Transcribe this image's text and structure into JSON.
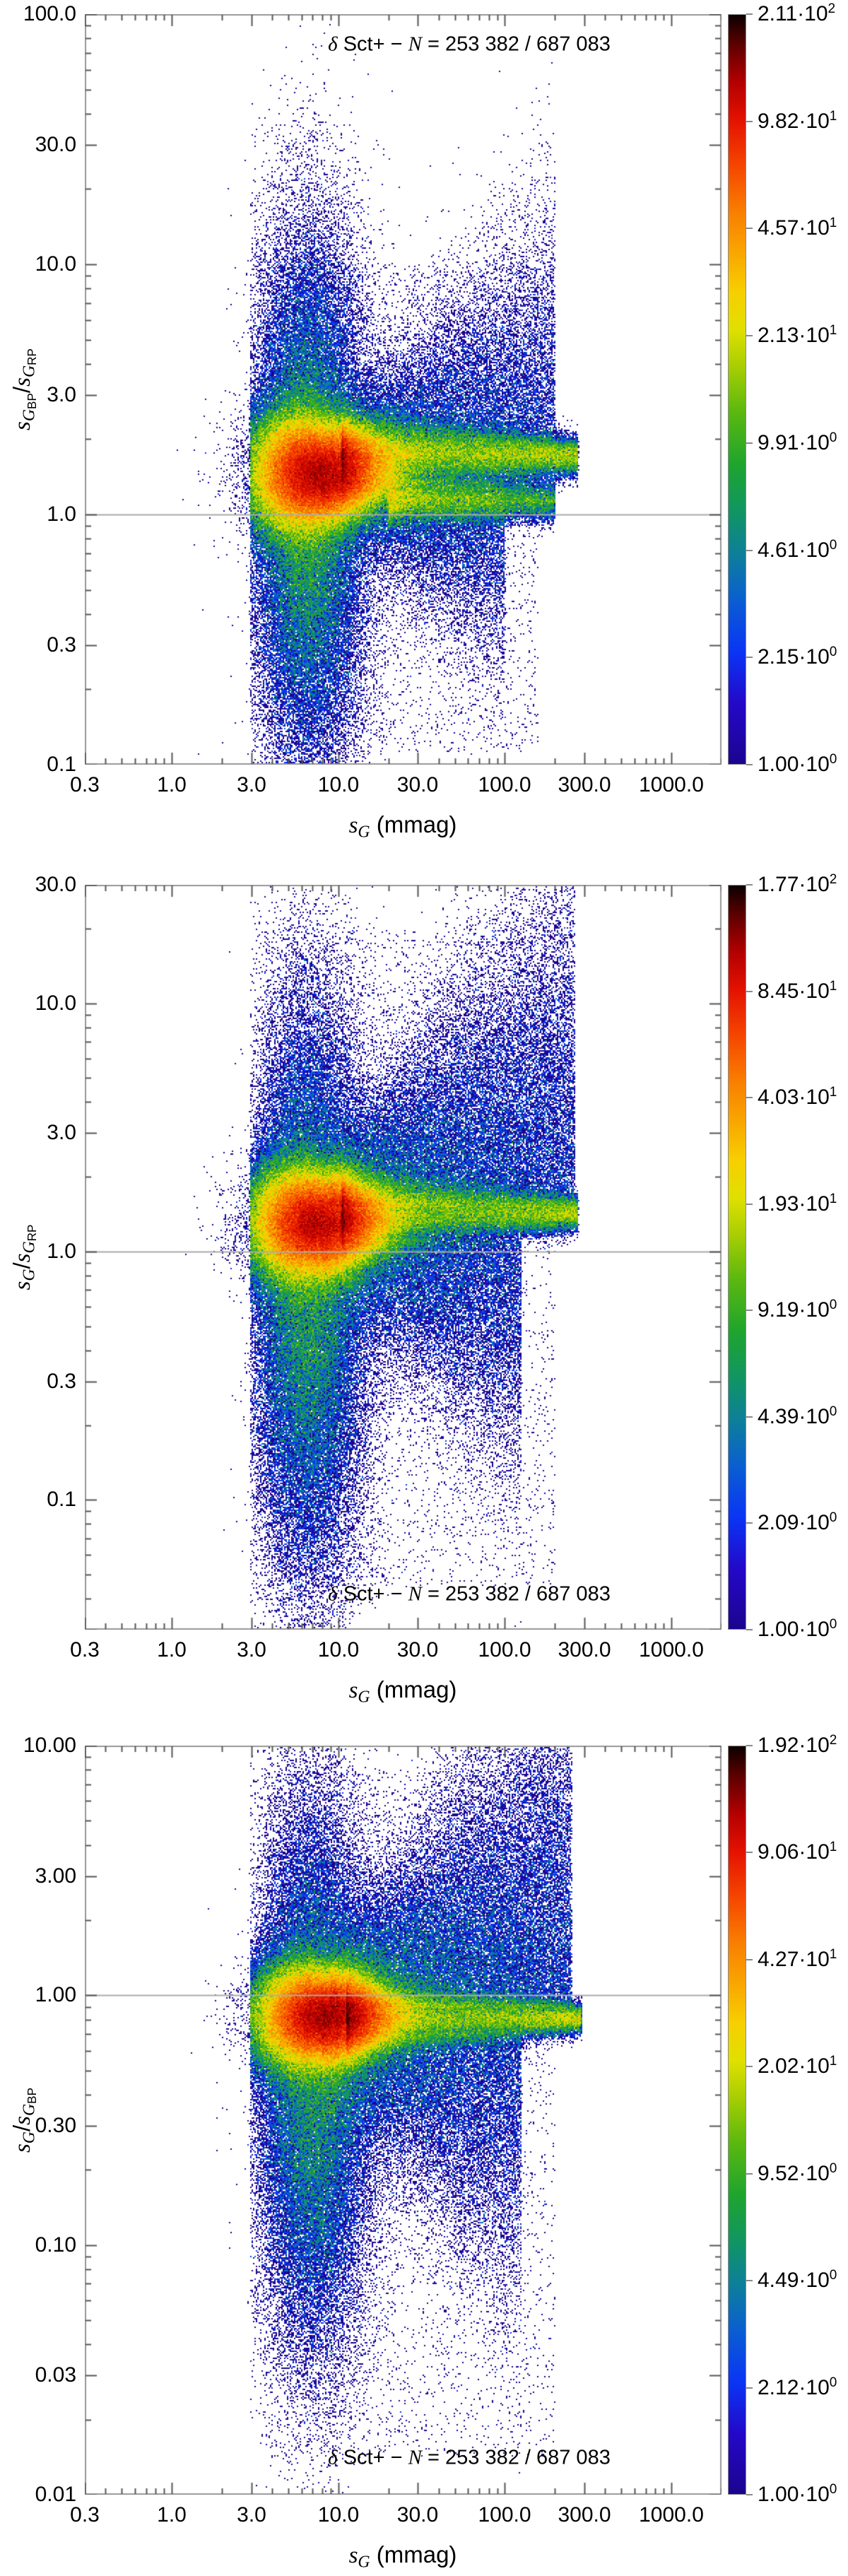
{
  "annotation": {
    "delta": "δ",
    "pre": " Sct+ − ",
    "nvar": "N",
    "post": " = 253 382 / 687 083"
  },
  "x_axis": {
    "title": {
      "s": "s",
      "sub": "G",
      "unit": " (mmag)"
    },
    "scale": "log",
    "range": [
      0.3,
      2000
    ],
    "ticks": [
      {
        "label": "0.3",
        "v": 0.3
      },
      {
        "label": "1.0",
        "v": 1
      },
      {
        "label": "3.0",
        "v": 3
      },
      {
        "label": "10.0",
        "v": 10
      },
      {
        "label": "30.0",
        "v": 30
      },
      {
        "label": "100.0",
        "v": 100
      },
      {
        "label": "300.0",
        "v": 300
      },
      {
        "label": "1000.0",
        "v": 1000
      }
    ]
  },
  "colormap": [
    [
      0.0,
      "#1c048f"
    ],
    [
      0.08,
      "#2408c8"
    ],
    [
      0.15,
      "#0a35f5"
    ],
    [
      0.22,
      "#0b5fd0"
    ],
    [
      0.28,
      "#0d7f9a"
    ],
    [
      0.34,
      "#119660"
    ],
    [
      0.4,
      "#1fa42e"
    ],
    [
      0.47,
      "#5bb80f"
    ],
    [
      0.53,
      "#a7ce03"
    ],
    [
      0.58,
      "#e0e000"
    ],
    [
      0.63,
      "#f7cf00"
    ],
    [
      0.68,
      "#f9a800"
    ],
    [
      0.74,
      "#f97c00"
    ],
    [
      0.8,
      "#f54400"
    ],
    [
      0.86,
      "#e31200"
    ],
    [
      0.91,
      "#b30000"
    ],
    [
      0.96,
      "#5e0000"
    ],
    [
      1.0,
      "#0c0000"
    ]
  ],
  "ref_line_color": "#ababab",
  "chart_data": {
    "type": "heatmap",
    "subtype": "log-density-scatter",
    "x_scale": "log",
    "x_range": [
      0.3,
      2000
    ],
    "x_tick_values": [
      0.3,
      1,
      3,
      10,
      30,
      100,
      300,
      1000
    ],
    "panels": [
      {
        "id": "sGBP-over-sGRP-vs-sG",
        "y_label": {
          "num_s": "s",
          "num_sub": "G",
          "num_subsub": "BP",
          "slash": "/",
          "den_s": "s",
          "den_sub": "G",
          "den_subsub": "RP"
        },
        "y_scale": "log",
        "y_range": [
          0.1,
          100
        ],
        "ref_line_y": 1.0,
        "annotation_pos": "top",
        "y_ticks": [
          {
            "label": "100.0",
            "v": 100
          },
          {
            "label": "30.0",
            "v": 30
          },
          {
            "label": "10.0",
            "v": 10
          },
          {
            "label": "3.0",
            "v": 3
          },
          {
            "label": "1.0",
            "v": 1
          },
          {
            "label": "0.3",
            "v": 0.3
          },
          {
            "label": "0.1",
            "v": 0.1
          }
        ],
        "colorbar": {
          "max": 211,
          "min": 1,
          "ticks": [
            {
              "base": "2.11·10",
              "exp": "2",
              "v": 211
            },
            {
              "base": "9.82·10",
              "exp": "1",
              "v": 98.2
            },
            {
              "base": "4.57·10",
              "exp": "1",
              "v": 45.7
            },
            {
              "base": "2.13·10",
              "exp": "1",
              "v": 21.3
            },
            {
              "base": "9.91·10",
              "exp": "0",
              "v": 9.91
            },
            {
              "base": "4.61·10",
              "exp": "0",
              "v": 4.61
            },
            {
              "base": "2.15·10",
              "exp": "0",
              "v": 2.15
            },
            {
              "base": "1.00·10",
              "exp": "0",
              "v": 1.0
            }
          ]
        },
        "density_components": [
          {
            "kind": "blob",
            "w": 0.46,
            "mx": 0.86,
            "sx": 0.21,
            "my": 0.165,
            "sy": 0.13,
            "taper": 0.55
          },
          {
            "kind": "blob",
            "w": 0.17,
            "mx": 0.82,
            "sx": 0.17,
            "my": 0.05,
            "sy": 0.5,
            "taper": 0
          },
          {
            "kind": "tail",
            "w": 0.13,
            "x0": 1.02,
            "x1": 2.44,
            "pow": 1.5,
            "my": 0.235,
            "sy0": 0.085,
            "sy1": 0.038
          },
          {
            "kind": "tail",
            "w": 0.045,
            "x0": 1.3,
            "x1": 2.3,
            "pow": 1.2,
            "my": 0.055,
            "sy0": 0.05,
            "sy1": 0.04
          },
          {
            "kind": "fan",
            "w": 0.05,
            "x0": 0.95,
            "x1": 2.3,
            "my": 0.22,
            "spread": 0.3,
            "grow": 1.3,
            "dir": 1
          },
          {
            "kind": "fan",
            "w": 0.04,
            "x0": 0.9,
            "x1": 2.0,
            "my": 0.14,
            "spread": 0.3,
            "grow": 0.9,
            "dir": -1
          },
          {
            "kind": "uniform",
            "w": 0.008,
            "x0": 0.55,
            "x1": 2.2,
            "y0": -0.95,
            "y1": 1.0
          }
        ]
      },
      {
        "id": "sG-over-sGRP-vs-sG",
        "y_label": {
          "num_s": "s",
          "num_sub": "G",
          "num_subsub": "",
          "slash": "/",
          "den_s": "s",
          "den_sub": "G",
          "den_subsub": "RP"
        },
        "y_scale": "log",
        "y_range": [
          0.03,
          30
        ],
        "ref_line_y": 1.0,
        "annotation_pos": "bottom",
        "y_ticks": [
          {
            "label": "30.0",
            "v": 30
          },
          {
            "label": "10.0",
            "v": 10
          },
          {
            "label": "3.0",
            "v": 3
          },
          {
            "label": "1.0",
            "v": 1
          },
          {
            "label": "0.3",
            "v": 0.3
          },
          {
            "label": "0.1",
            "v": 0.1
          }
        ],
        "colorbar": {
          "max": 177,
          "min": 1,
          "ticks": [
            {
              "base": "1.77·10",
              "exp": "2",
              "v": 177
            },
            {
              "base": "8.45·10",
              "exp": "1",
              "v": 84.5
            },
            {
              "base": "4.03·10",
              "exp": "1",
              "v": 40.3
            },
            {
              "base": "1.93·10",
              "exp": "1",
              "v": 19.3
            },
            {
              "base": "9.19·10",
              "exp": "0",
              "v": 9.19
            },
            {
              "base": "4.39·10",
              "exp": "0",
              "v": 4.39
            },
            {
              "base": "2.09·10",
              "exp": "0",
              "v": 2.09
            },
            {
              "base": "1.00·10",
              "exp": "0",
              "v": 1.0
            }
          ]
        },
        "density_components": [
          {
            "kind": "blob",
            "w": 0.46,
            "mx": 0.86,
            "sx": 0.21,
            "my": 0.115,
            "sy": 0.125,
            "taper": 0.5
          },
          {
            "kind": "blob",
            "w": 0.17,
            "mx": 0.82,
            "sx": 0.17,
            "my": -0.15,
            "sy": 0.55,
            "taper": 0
          },
          {
            "kind": "tail",
            "w": 0.12,
            "x0": 1.02,
            "x1": 2.44,
            "pow": 1.5,
            "my": 0.155,
            "sy0": 0.08,
            "sy1": 0.035
          },
          {
            "kind": "fan",
            "w": 0.085,
            "x0": 0.95,
            "x1": 2.42,
            "my": 0.18,
            "spread": 0.38,
            "grow": 1.5,
            "dir": 1
          },
          {
            "kind": "fan",
            "w": 0.05,
            "x0": 0.9,
            "x1": 2.1,
            "my": 0.05,
            "spread": 0.36,
            "grow": 1.0,
            "dir": -1
          },
          {
            "kind": "uniform",
            "w": 0.01,
            "x0": 0.55,
            "x1": 2.3,
            "y0": -1.35,
            "y1": 1.3
          }
        ]
      },
      {
        "id": "sG-over-sGBP-vs-sG",
        "y_label": {
          "num_s": "s",
          "num_sub": "G",
          "num_subsub": "",
          "slash": "/",
          "den_s": "s",
          "den_sub": "G",
          "den_subsub": "BP"
        },
        "y_scale": "log",
        "y_range": [
          0.01,
          10
        ],
        "ref_line_y": 1.0,
        "annotation_pos": "bottom",
        "y_ticks": [
          {
            "label": "10.00",
            "v": 10
          },
          {
            "label": "3.00",
            "v": 3
          },
          {
            "label": "1.00",
            "v": 1
          },
          {
            "label": "0.30",
            "v": 0.3
          },
          {
            "label": "0.10",
            "v": 0.1
          },
          {
            "label": "0.03",
            "v": 0.03
          },
          {
            "label": "0.01",
            "v": 0.01
          }
        ],
        "colorbar": {
          "max": 192,
          "min": 1,
          "ticks": [
            {
              "base": "1.92·10",
              "exp": "2",
              "v": 192
            },
            {
              "base": "9.06·10",
              "exp": "1",
              "v": 90.6
            },
            {
              "base": "4.27·10",
              "exp": "1",
              "v": 42.7
            },
            {
              "base": "2.02·10",
              "exp": "1",
              "v": 20.2
            },
            {
              "base": "9.52·10",
              "exp": "0",
              "v": 9.52
            },
            {
              "base": "4.49·10",
              "exp": "0",
              "v": 4.49
            },
            {
              "base": "2.12·10",
              "exp": "0",
              "v": 2.12
            },
            {
              "base": "1.00·10",
              "exp": "0",
              "v": 1.0
            }
          ]
        },
        "density_components": [
          {
            "kind": "blob",
            "w": 0.46,
            "mx": 0.9,
            "sx": 0.21,
            "my": -0.085,
            "sy": 0.115,
            "taper": 0.5
          },
          {
            "kind": "blob",
            "w": 0.15,
            "mx": 0.85,
            "sx": 0.17,
            "my": -0.32,
            "sy": 0.52,
            "taper": 0
          },
          {
            "kind": "tail",
            "w": 0.12,
            "x0": 1.05,
            "x1": 2.46,
            "pow": 1.5,
            "my": -0.092,
            "sy0": 0.075,
            "sy1": 0.03
          },
          {
            "kind": "fan",
            "w": 0.1,
            "x0": 0.95,
            "x1": 2.4,
            "my": -0.05,
            "spread": 0.38,
            "grow": 1.5,
            "dir": 1
          },
          {
            "kind": "fan",
            "w": 0.055,
            "x0": 0.9,
            "x1": 2.1,
            "my": -0.15,
            "spread": 0.4,
            "grow": 1.0,
            "dir": -1
          },
          {
            "kind": "uniform",
            "w": 0.01,
            "x0": 0.55,
            "x1": 2.3,
            "y0": -1.85,
            "y1": 0.9
          }
        ]
      }
    ]
  }
}
